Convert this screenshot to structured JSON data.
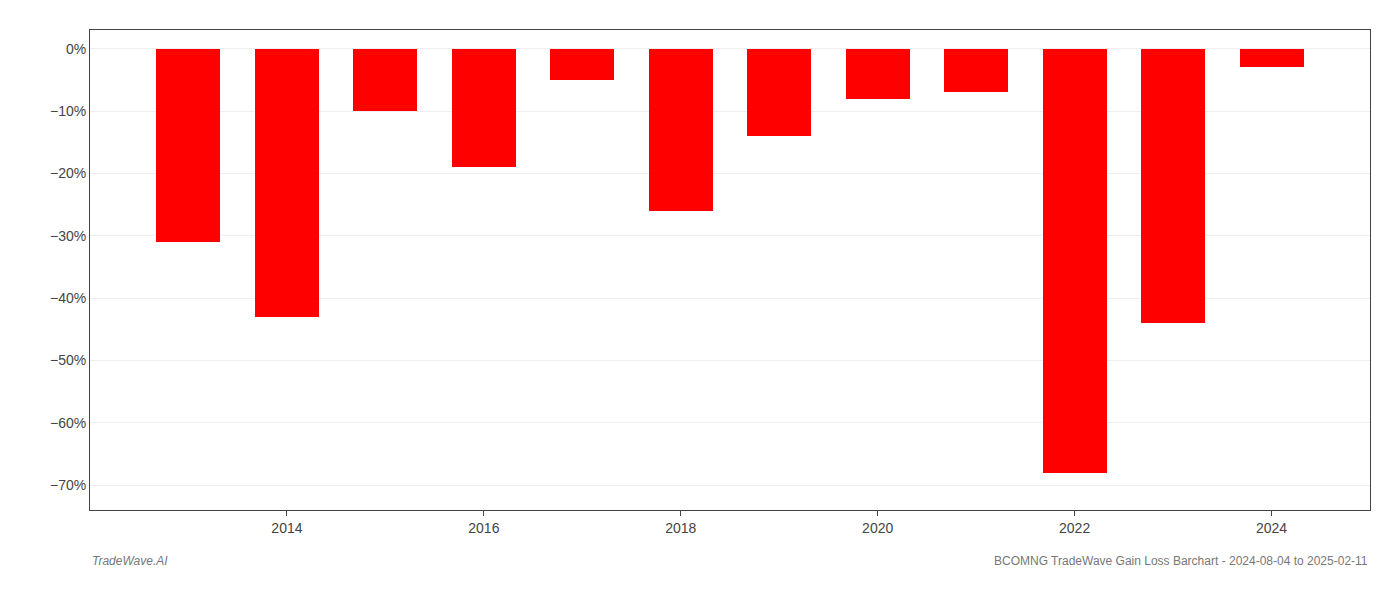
{
  "chart_data": {
    "type": "bar",
    "x": [
      2013,
      2014,
      2015,
      2016,
      2017,
      2018,
      2019,
      2020,
      2021,
      2022,
      2023,
      2024
    ],
    "values": [
      -31.0,
      -43.0,
      -10.0,
      -19.0,
      -5.0,
      -26.0,
      -14.0,
      -8.0,
      -7.0,
      -68.0,
      -44.0,
      -3.0
    ],
    "color": "#ff0000",
    "xlim": [
      2012,
      2025
    ],
    "xticks": [
      2014,
      2016,
      2018,
      2020,
      2022,
      2024
    ],
    "ylim": [
      -74,
      3
    ],
    "yticks": [
      {
        "value": 0,
        "label": "0%"
      },
      {
        "value": -10,
        "label": "−10%"
      },
      {
        "value": -20,
        "label": "−20%"
      },
      {
        "value": -30,
        "label": "−30%"
      },
      {
        "value": -40,
        "label": "−40%"
      },
      {
        "value": -50,
        "label": "−50%"
      },
      {
        "value": -60,
        "label": "−60%"
      },
      {
        "value": -70,
        "label": "−70%"
      }
    ],
    "grid": true,
    "annotations": [
      "TradeWave.AI",
      "BCOMNG TradeWave Gain Loss Barchart - 2024-08-04 to 2025-02-11"
    ]
  }
}
